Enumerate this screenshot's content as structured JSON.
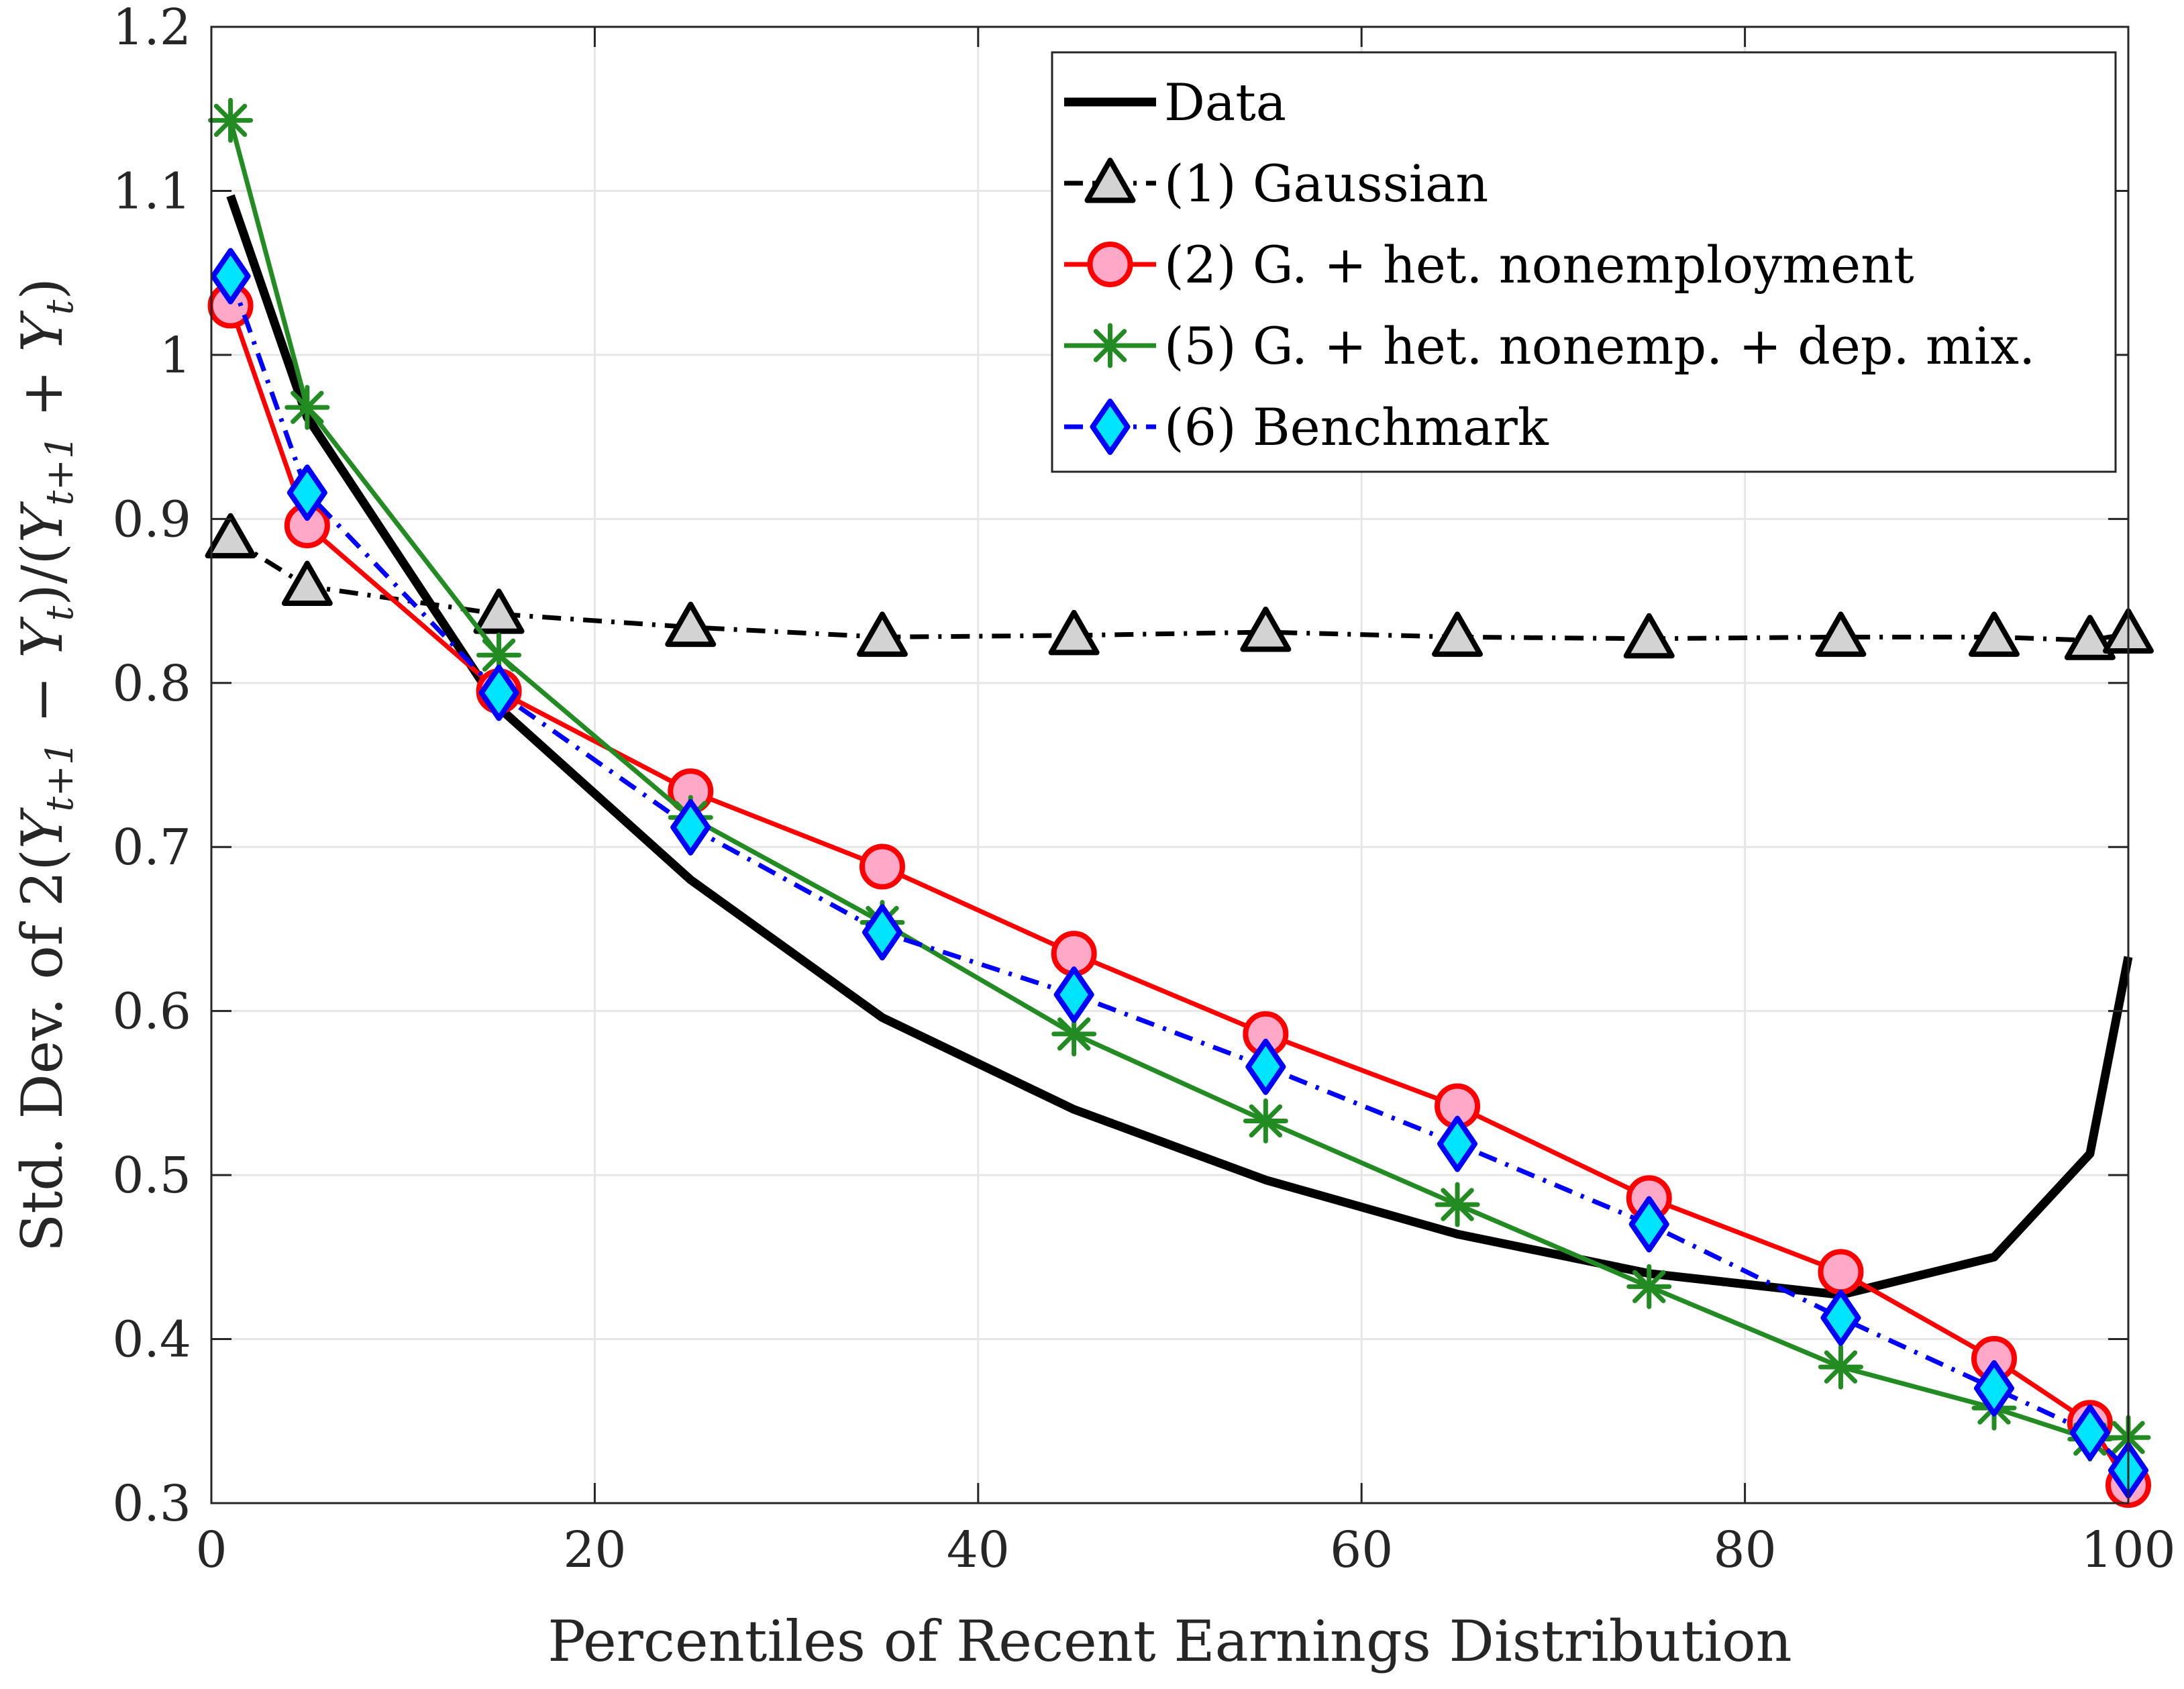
{
  "chart_data": {
    "type": "line",
    "title": "",
    "xlabel": "Percentiles of Recent Earnings Distribution",
    "ylabel": "Std. Dev. of 2(Y_{t+1} − Y_t)/(Y_{t+1} + Y_t)",
    "ylabel_parts": {
      "prefix": "Std. Dev. of 2(",
      "y1": "Y",
      "sub1": "t+1",
      "minus": " − ",
      "y2": "Y",
      "sub2": "t",
      "middle": ")/(",
      "y3": "Y",
      "sub3": "t+1",
      "plus": " + ",
      "y4": "Y",
      "sub4": "t",
      "suffix": ")"
    },
    "xlim": [
      0,
      100
    ],
    "ylim": [
      0.3,
      1.2
    ],
    "xticks": [
      0,
      20,
      40,
      60,
      80,
      100
    ],
    "yticks": [
      0.3,
      0.4,
      0.5,
      0.6,
      0.7,
      0.8,
      0.9,
      1.0,
      1.1,
      1.2
    ],
    "xtick_labels": [
      "0",
      "20",
      "40",
      "60",
      "80",
      "100"
    ],
    "ytick_labels": [
      "0.3",
      "0.4",
      "0.5",
      "0.6",
      "0.7",
      "0.8",
      "0.9",
      "1",
      "1.1",
      "1.2"
    ],
    "grid": true,
    "legend_position": "top-right",
    "series": [
      {
        "name": "Data",
        "color": "#000000",
        "marker": "none",
        "dash": "solid",
        "x": [
          1,
          5,
          15,
          25,
          35,
          45,
          55,
          65,
          75,
          85,
          93,
          98,
          100
        ],
        "y": [
          1.097,
          0.962,
          0.785,
          0.68,
          0.596,
          0.54,
          0.497,
          0.464,
          0.44,
          0.427,
          0.45,
          0.513,
          0.633
        ]
      },
      {
        "name": "(1) Gaussian",
        "color": "#000000",
        "marker": "triangle",
        "marker_fill": "#d3d3d3",
        "dash": "dashdot",
        "x": [
          1,
          5,
          15,
          25,
          35,
          45,
          55,
          65,
          75,
          85,
          93,
          98,
          100
        ],
        "y": [
          0.888,
          0.859,
          0.842,
          0.834,
          0.828,
          0.829,
          0.831,
          0.828,
          0.827,
          0.828,
          0.828,
          0.826,
          0.83
        ]
      },
      {
        "name": "(2) G. + het. nonemployment",
        "color": "#ff0000",
        "marker": "circle",
        "marker_fill": "#ffa8c8",
        "dash": "solid",
        "x": [
          1,
          5,
          15,
          25,
          35,
          45,
          55,
          65,
          75,
          85,
          93,
          98,
          100
        ],
        "y": [
          1.03,
          0.896,
          0.795,
          0.734,
          0.688,
          0.635,
          0.586,
          0.542,
          0.486,
          0.441,
          0.388,
          0.349,
          0.311
        ]
      },
      {
        "name": "(5) G. + het. nonemp. + dep. mix.",
        "color": "#228b22",
        "marker": "asterisk",
        "dash": "solid",
        "x": [
          1,
          5,
          15,
          25,
          35,
          45,
          55,
          65,
          75,
          85,
          93,
          98,
          100
        ],
        "y": [
          1.143,
          0.968,
          0.817,
          0.718,
          0.654,
          0.586,
          0.533,
          0.482,
          0.432,
          0.383,
          0.358,
          0.339,
          0.34
        ]
      },
      {
        "name": "(6) Benchmark",
        "color": "#0000ff",
        "marker": "diamond",
        "marker_fill": "#00e5ff",
        "dash": "dashdot",
        "x": [
          1,
          5,
          15,
          25,
          35,
          45,
          55,
          65,
          75,
          85,
          93,
          98,
          100
        ],
        "y": [
          1.048,
          0.916,
          0.794,
          0.712,
          0.648,
          0.61,
          0.566,
          0.519,
          0.47,
          0.413,
          0.37,
          0.343,
          0.32
        ]
      }
    ]
  }
}
